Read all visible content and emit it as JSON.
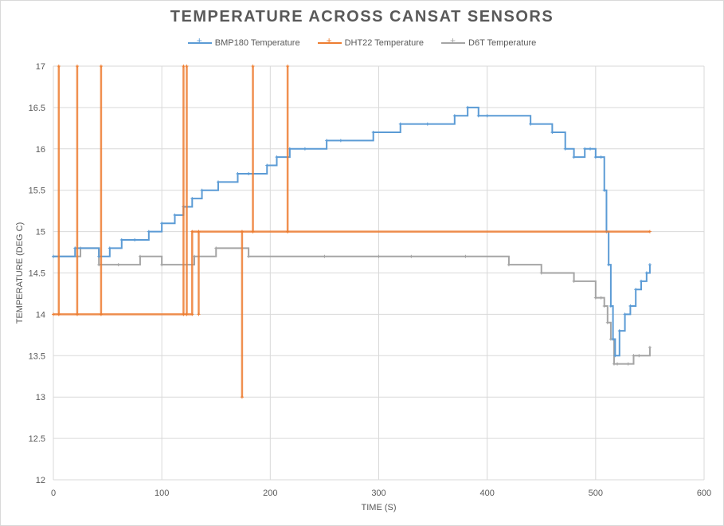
{
  "chart_data": {
    "type": "line",
    "title": "TEMPERATURE ACROSS CANSAT SENSORS",
    "xlabel": "TIME (S)",
    "ylabel": "TEMPERATURE (DEG C)",
    "xlim": [
      0,
      600
    ],
    "ylim": [
      12,
      17
    ],
    "x_ticks": [
      0,
      100,
      200,
      300,
      400,
      500,
      600
    ],
    "y_ticks": [
      12,
      12.5,
      13,
      13.5,
      14,
      14.5,
      15,
      15.5,
      16,
      16.5,
      17
    ],
    "grid": true,
    "legend_position": "top",
    "series": [
      {
        "name": "BMP180 Temperature",
        "color": "#5b9bd5",
        "x": [
          0,
          20,
          42,
          52,
          63,
          75,
          88,
          100,
          112,
          120,
          128,
          137,
          152,
          170,
          180,
          197,
          206,
          218,
          232,
          252,
          265,
          295,
          320,
          345,
          370,
          382,
          392,
          400,
          440,
          460,
          472,
          480,
          490,
          495,
          500,
          505,
          508,
          510,
          512,
          514,
          516,
          518,
          522,
          527,
          532,
          537,
          542,
          547,
          550
        ],
        "y": [
          14.7,
          14.8,
          14.7,
          14.8,
          14.9,
          14.9,
          15.0,
          15.1,
          15.2,
          15.3,
          15.4,
          15.5,
          15.6,
          15.7,
          15.7,
          15.8,
          15.9,
          16.0,
          16.0,
          16.1,
          16.1,
          16.2,
          16.3,
          16.3,
          16.4,
          16.5,
          16.4,
          16.4,
          16.3,
          16.2,
          16.0,
          15.9,
          16.0,
          16.0,
          15.9,
          15.9,
          15.5,
          15.0,
          14.6,
          14.1,
          13.7,
          13.5,
          13.8,
          14.0,
          14.1,
          14.3,
          14.4,
          14.5,
          14.6
        ]
      },
      {
        "name": "DHT22 Temperature",
        "color": "#ed7d31",
        "x": [
          0,
          5,
          5,
          5,
          22,
          22,
          22,
          44,
          44,
          44,
          120,
          120,
          120,
          123,
          123,
          123,
          128,
          128,
          134,
          134,
          134,
          174,
          174,
          174,
          184,
          184,
          184,
          216,
          216,
          216,
          550
        ],
        "y": [
          14,
          14,
          17,
          14,
          14,
          17,
          14,
          14,
          17,
          14,
          14,
          17,
          14,
          14,
          17,
          14,
          14,
          15,
          15,
          14,
          15,
          15,
          13,
          15,
          15,
          17,
          15,
          15,
          17,
          15,
          15
        ]
      },
      {
        "name": "D6T Temperature",
        "color": "#a5a5a5",
        "x": [
          0,
          25,
          42,
          60,
          80,
          100,
          130,
          150,
          180,
          250,
          300,
          330,
          380,
          420,
          450,
          480,
          500,
          505,
          508,
          511,
          514,
          517,
          520,
          530,
          535,
          540,
          550
        ],
        "y": [
          14.7,
          14.8,
          14.6,
          14.6,
          14.7,
          14.6,
          14.7,
          14.8,
          14.7,
          14.7,
          14.7,
          14.7,
          14.7,
          14.6,
          14.5,
          14.4,
          14.2,
          14.2,
          14.1,
          13.9,
          13.7,
          13.4,
          13.4,
          13.4,
          13.5,
          13.5,
          13.6
        ]
      }
    ]
  }
}
